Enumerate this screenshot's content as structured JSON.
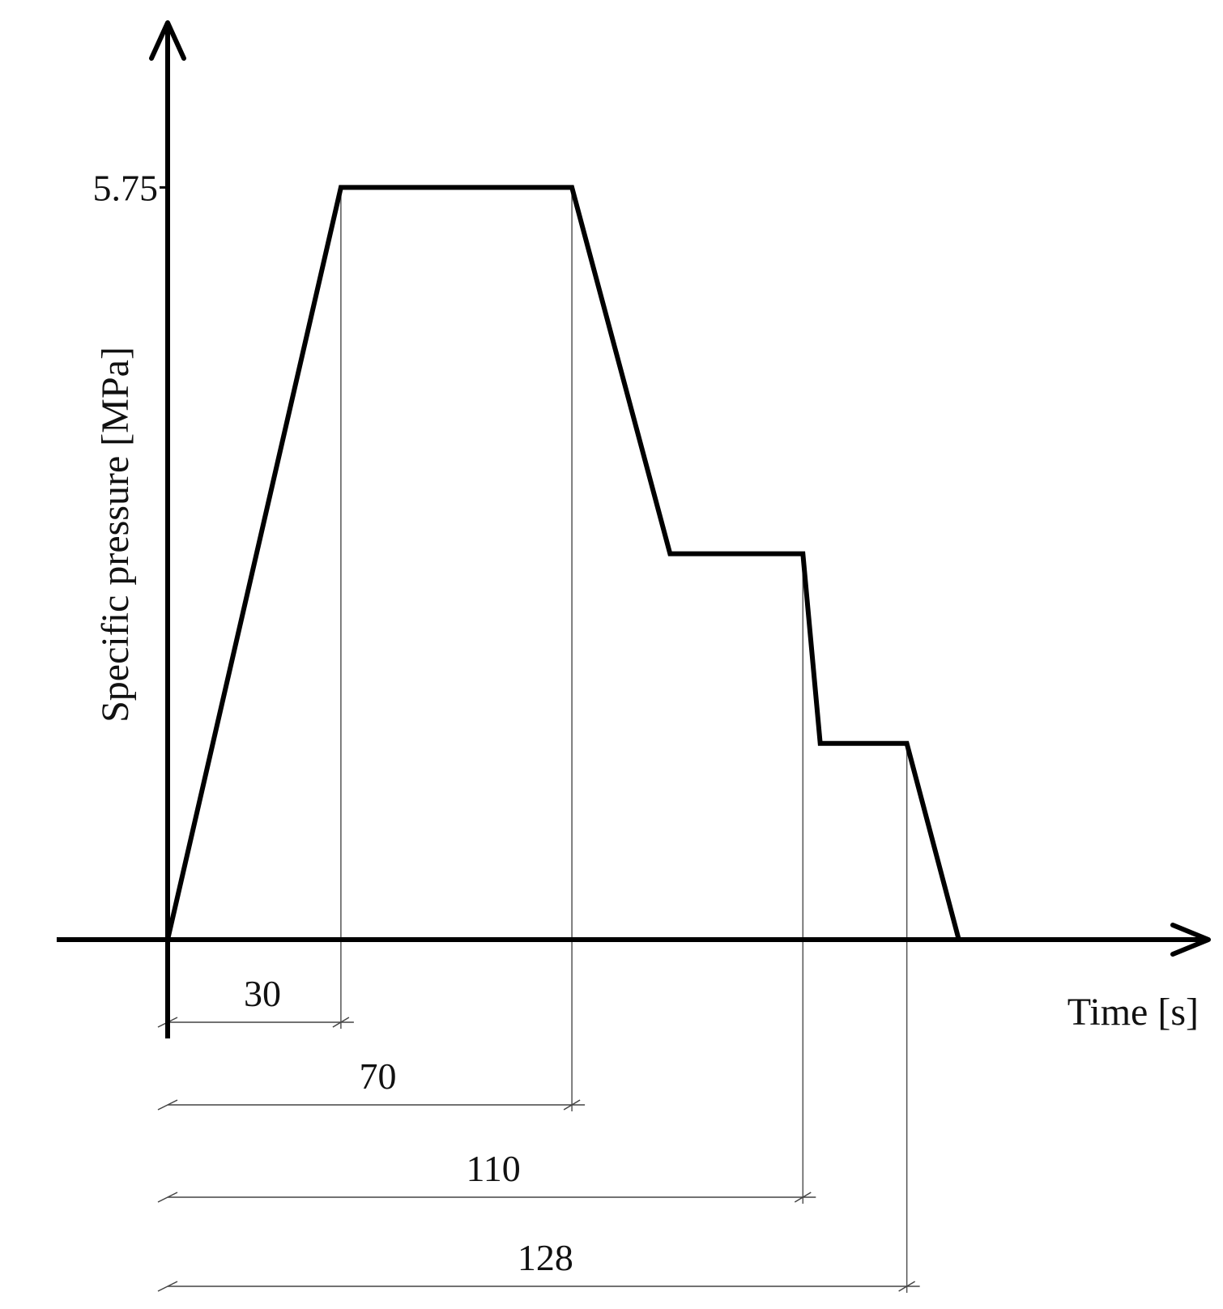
{
  "chart_data": {
    "type": "line",
    "title": "",
    "xlabel": "Time [s]",
    "ylabel": "Specific pressure [MPa]",
    "y_ticks": [
      {
        "value": 5.75,
        "label": "5.75"
      }
    ],
    "series": [
      {
        "x": [
          0,
          30,
          70,
          87,
          110,
          113,
          128,
          137
        ],
        "y": [
          0,
          5.75,
          5.75,
          2.95,
          2.95,
          1.5,
          1.5,
          0
        ]
      }
    ],
    "time_markers": [
      {
        "value": 30,
        "label": "30"
      },
      {
        "value": 70,
        "label": "70"
      },
      {
        "value": 110,
        "label": "110"
      },
      {
        "value": 128,
        "label": "128"
      }
    ],
    "xlim": [
      0,
      150
    ],
    "ylim": [
      0,
      7.1
    ],
    "grid": false,
    "legend": "none",
    "colors": {
      "line": "#000000",
      "guide": "#555555",
      "text": "#111111"
    }
  }
}
